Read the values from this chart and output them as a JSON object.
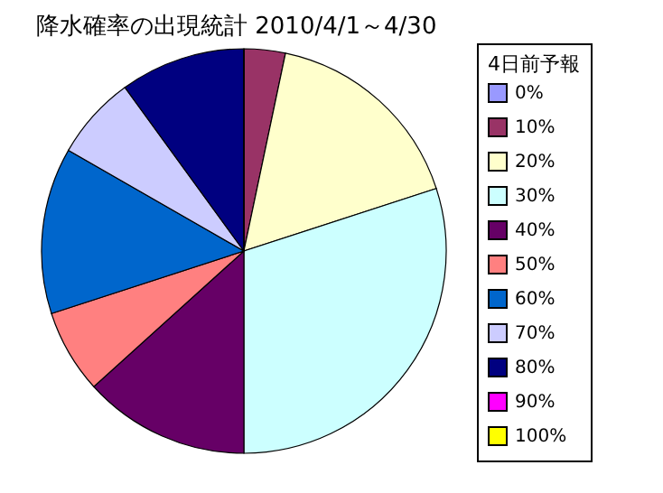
{
  "chart_data": {
    "type": "pie",
    "title": "降水確率の出現統計 2010/4/1～4/30",
    "legend_title": "4日前予報",
    "legend": "right",
    "categories": [
      "0%",
      "10%",
      "20%",
      "30%",
      "40%",
      "50%",
      "60%",
      "70%",
      "80%",
      "90%",
      "100%"
    ],
    "values": [
      0,
      3.3,
      16.7,
      30,
      13.3,
      6.7,
      13.3,
      6.7,
      10,
      0,
      0
    ],
    "colors": [
      "#9999ff",
      "#993366",
      "#ffffcc",
      "#ccffff",
      "#660066",
      "#ff8080",
      "#0066cc",
      "#ccccff",
      "#000080",
      "#ff00ff",
      "#ffff00"
    ]
  }
}
